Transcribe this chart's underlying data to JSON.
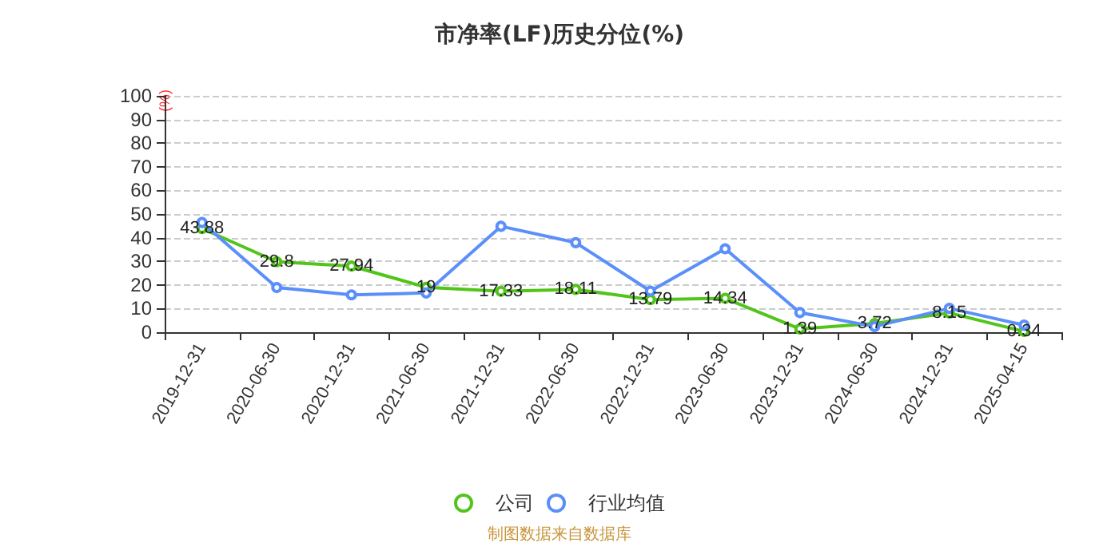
{
  "chart_data": {
    "type": "line",
    "title": "市净率(LF)历史分位(%)",
    "ylabel": "(%)",
    "categories": [
      "2019-12-31",
      "2020-06-30",
      "2020-12-31",
      "2021-06-30",
      "2021-12-31",
      "2022-06-30",
      "2022-12-31",
      "2023-06-30",
      "2023-12-31",
      "2024-06-30",
      "2024-12-31",
      "2025-04-15"
    ],
    "series": [
      {
        "name": "公司",
        "color": "#52c41a",
        "values": [
          43.88,
          29.8,
          27.94,
          19,
          17.33,
          18.11,
          13.79,
          14.34,
          1.39,
          3.72,
          8.15,
          0.34
        ],
        "value_labels": [
          "43.88",
          "29.8",
          "27.94",
          "19",
          "17.33",
          "18.11",
          "13.79",
          "14.34",
          "1.39",
          "3.72",
          "8.15",
          "0.34"
        ]
      },
      {
        "name": "行业均值",
        "color": "#5b8ff9",
        "values": [
          46.4,
          18.9,
          15.8,
          16.6,
          44.8,
          37.9,
          17.4,
          35.3,
          8.3,
          2.4,
          10.1,
          3
        ]
      }
    ],
    "ylim": [
      0,
      100
    ],
    "yticks": [
      0,
      10,
      20,
      30,
      40,
      50,
      60,
      70,
      80,
      90,
      100
    ],
    "grid": "y",
    "legend": "bottom",
    "marker": "circle",
    "line_style": "solid",
    "annotations": [
      "制图数据来自数据库"
    ]
  }
}
